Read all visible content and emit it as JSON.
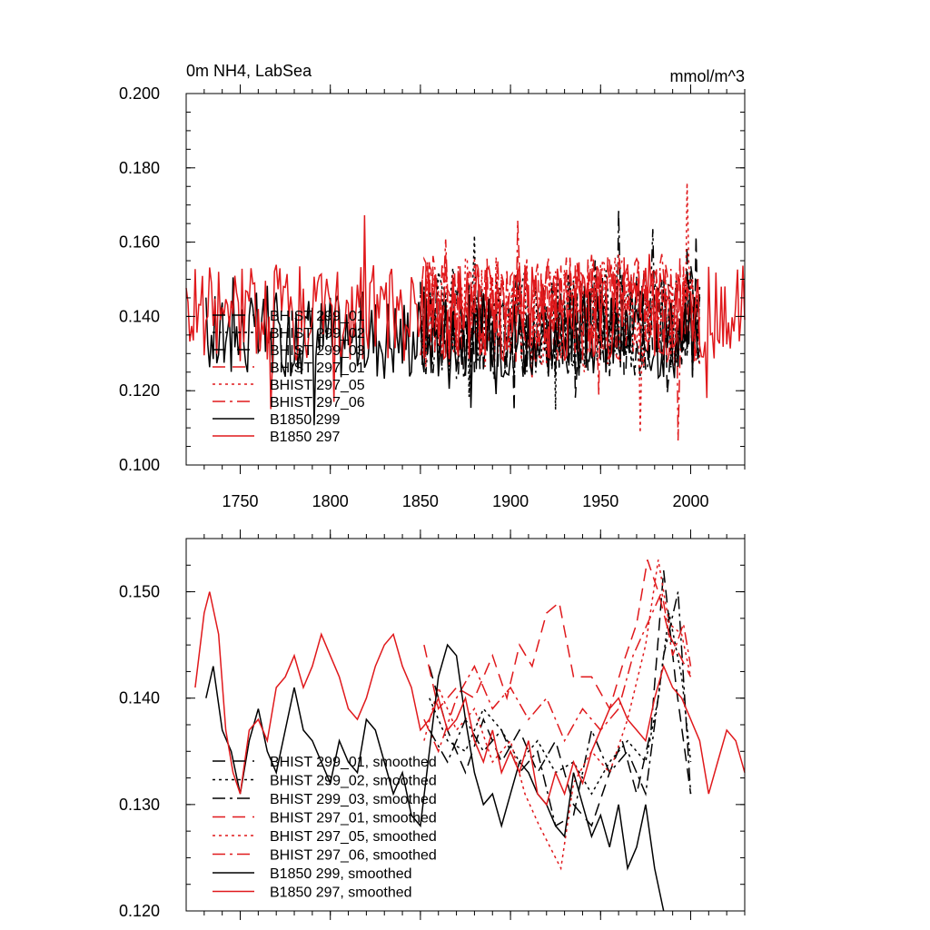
{
  "chart_data": [
    {
      "type": "line",
      "title": "0m NH4, LabSea",
      "units": "mmol/m^3",
      "xlim": [
        1720,
        2030
      ],
      "ylim": [
        0.1,
        0.2
      ],
      "xticks": [
        1750,
        1800,
        1850,
        1900,
        1950,
        2000
      ],
      "xtick_labels": [
        "1750",
        "1800",
        "1850",
        "1900",
        "1950",
        "2000"
      ],
      "yticks": [
        0.1,
        0.12,
        0.14,
        0.16,
        0.18,
        0.2
      ],
      "ytick_labels": [
        "0.100",
        "0.120",
        "0.140",
        "0.160",
        "0.180",
        "0.200"
      ],
      "series": [
        {
          "name": "BHIST 299_01",
          "color": "#000000",
          "dash": "14,8",
          "x_start": 1850,
          "x_end": 2005,
          "mean": 0.138,
          "amp": 0.014,
          "seed": 11
        },
        {
          "name": "BHIST 299_02",
          "color": "#000000",
          "dash": "3,4",
          "x_start": 1850,
          "x_end": 2005,
          "mean": 0.139,
          "amp": 0.014,
          "seed": 12
        },
        {
          "name": "BHIST 299_03",
          "color": "#000000",
          "dash": "14,5,3,5",
          "x_start": 1850,
          "x_end": 2005,
          "mean": 0.137,
          "amp": 0.014,
          "seed": 13
        },
        {
          "name": "BHIST 297_01",
          "color": "#e0191c",
          "dash": "14,8",
          "x_start": 1850,
          "x_end": 2005,
          "mean": 0.142,
          "amp": 0.015,
          "seed": 14
        },
        {
          "name": "BHIST 297_05",
          "color": "#e0191c",
          "dash": "3,4",
          "x_start": 1850,
          "x_end": 2005,
          "mean": 0.141,
          "amp": 0.015,
          "seed": 15
        },
        {
          "name": "BHIST 297_06",
          "color": "#e0191c",
          "dash": "14,5,3,5",
          "x_start": 1850,
          "x_end": 2005,
          "mean": 0.142,
          "amp": 0.015,
          "seed": 16
        },
        {
          "name": "B1850 299",
          "color": "#000000",
          "dash": "",
          "x_start": 1731,
          "x_end": 2005,
          "mean": 0.135,
          "amp": 0.012,
          "seed": 17
        },
        {
          "name": "B1850 297",
          "color": "#e0191c",
          "dash": "",
          "x_start": 1720,
          "x_end": 2030,
          "mean": 0.141,
          "amp": 0.013,
          "seed": 18
        }
      ]
    },
    {
      "type": "line",
      "xlim": [
        1720,
        2030
      ],
      "ylim": [
        0.12,
        0.155
      ],
      "yticks": [
        0.12,
        0.13,
        0.14,
        0.15
      ],
      "ytick_labels": [
        "0.120",
        "0.130",
        "0.140",
        "0.150"
      ],
      "series": [
        {
          "name": "BHIST 299_01, smoothed",
          "color": "#000000",
          "dash": "14,8",
          "points": [
            [
              1855,
              0.143
            ],
            [
              1865,
              0.137
            ],
            [
              1875,
              0.133
            ],
            [
              1885,
              0.138
            ],
            [
              1895,
              0.134
            ],
            [
              1905,
              0.137
            ],
            [
              1915,
              0.133
            ],
            [
              1925,
              0.136
            ],
            [
              1935,
              0.13
            ],
            [
              1945,
              0.128
            ],
            [
              1955,
              0.133
            ],
            [
              1962,
              0.136
            ],
            [
              1970,
              0.131
            ],
            [
              1978,
              0.137
            ],
            [
              1985,
              0.152
            ],
            [
              1992,
              0.141
            ],
            [
              2000,
              0.131
            ]
          ]
        },
        {
          "name": "BHIST 299_02, smoothed",
          "color": "#000000",
          "dash": "3,4",
          "points": [
            [
              1855,
              0.14
            ],
            [
              1865,
              0.136
            ],
            [
              1875,
              0.135
            ],
            [
              1885,
              0.139
            ],
            [
              1895,
              0.137
            ],
            [
              1905,
              0.134
            ],
            [
              1915,
              0.136
            ],
            [
              1925,
              0.133
            ],
            [
              1935,
              0.134
            ],
            [
              1945,
              0.131
            ],
            [
              1955,
              0.134
            ],
            [
              1965,
              0.136
            ],
            [
              1975,
              0.134
            ],
            [
              1982,
              0.14
            ],
            [
              1988,
              0.148
            ],
            [
              1995,
              0.142
            ],
            [
              2000,
              0.134
            ]
          ]
        },
        {
          "name": "BHIST 299_03, smoothed",
          "color": "#000000",
          "dash": "14,5,3,5",
          "points": [
            [
              1855,
              0.137
            ],
            [
              1865,
              0.134
            ],
            [
              1875,
              0.138
            ],
            [
              1885,
              0.135
            ],
            [
              1895,
              0.137
            ],
            [
              1905,
              0.133
            ],
            [
              1915,
              0.135
            ],
            [
              1925,
              0.128
            ],
            [
              1935,
              0.129
            ],
            [
              1945,
              0.137
            ],
            [
              1955,
              0.133
            ],
            [
              1965,
              0.135
            ],
            [
              1975,
              0.131
            ],
            [
              1985,
              0.144
            ],
            [
              1993,
              0.15
            ],
            [
              2000,
              0.131
            ]
          ]
        },
        {
          "name": "BHIST 297_01, smoothed",
          "color": "#e0191c",
          "dash": "14,8",
          "points": [
            [
              1852,
              0.145
            ],
            [
              1860,
              0.139
            ],
            [
              1870,
              0.141
            ],
            [
              1880,
              0.14
            ],
            [
              1890,
              0.144
            ],
            [
              1898,
              0.14
            ],
            [
              1905,
              0.145
            ],
            [
              1912,
              0.143
            ],
            [
              1920,
              0.148
            ],
            [
              1927,
              0.149
            ],
            [
              1935,
              0.142
            ],
            [
              1945,
              0.142
            ],
            [
              1955,
              0.139
            ],
            [
              1962,
              0.143
            ],
            [
              1970,
              0.147
            ],
            [
              1976,
              0.153
            ],
            [
              1982,
              0.15
            ],
            [
              1988,
              0.146
            ],
            [
              1994,
              0.144
            ],
            [
              2000,
              0.142
            ]
          ]
        },
        {
          "name": "BHIST 297_05, smoothed",
          "color": "#e0191c",
          "dash": "3,4",
          "points": [
            [
              1852,
              0.136
            ],
            [
              1860,
              0.141
            ],
            [
              1870,
              0.137
            ],
            [
              1880,
              0.139
            ],
            [
              1890,
              0.134
            ],
            [
              1900,
              0.136
            ],
            [
              1908,
              0.131
            ],
            [
              1916,
              0.128
            ],
            [
              1922,
              0.126
            ],
            [
              1928,
              0.124
            ],
            [
              1935,
              0.132
            ],
            [
              1945,
              0.135
            ],
            [
              1955,
              0.133
            ],
            [
              1965,
              0.138
            ],
            [
              1975,
              0.145
            ],
            [
              1982,
              0.153
            ],
            [
              1988,
              0.147
            ],
            [
              1995,
              0.146
            ],
            [
              2000,
              0.142
            ]
          ]
        },
        {
          "name": "BHIST 297_06, smoothed",
          "color": "#e0191c",
          "dash": "14,5,3,5",
          "points": [
            [
              1852,
              0.138
            ],
            [
              1860,
              0.135
            ],
            [
              1870,
              0.14
            ],
            [
              1880,
              0.143
            ],
            [
              1890,
              0.139
            ],
            [
              1900,
              0.141
            ],
            [
              1910,
              0.138
            ],
            [
              1920,
              0.14
            ],
            [
              1930,
              0.136
            ],
            [
              1940,
              0.139
            ],
            [
              1950,
              0.137
            ],
            [
              1960,
              0.139
            ],
            [
              1968,
              0.144
            ],
            [
              1976,
              0.147
            ],
            [
              1984,
              0.15
            ],
            [
              1990,
              0.144
            ],
            [
              1996,
              0.147
            ],
            [
              2000,
              0.143
            ]
          ]
        },
        {
          "name": "B1850 299, smoothed",
          "color": "#000000",
          "dash": "",
          "points": [
            [
              1731,
              0.14
            ],
            [
              1735,
              0.143
            ],
            [
              1740,
              0.137
            ],
            [
              1745,
              0.135
            ],
            [
              1750,
              0.131
            ],
            [
              1755,
              0.136
            ],
            [
              1760,
              0.139
            ],
            [
              1765,
              0.135
            ],
            [
              1770,
              0.133
            ],
            [
              1775,
              0.137
            ],
            [
              1780,
              0.141
            ],
            [
              1785,
              0.137
            ],
            [
              1790,
              0.136
            ],
            [
              1795,
              0.134
            ],
            [
              1800,
              0.132
            ],
            [
              1805,
              0.136
            ],
            [
              1810,
              0.134
            ],
            [
              1815,
              0.133
            ],
            [
              1820,
              0.138
            ],
            [
              1825,
              0.137
            ],
            [
              1830,
              0.134
            ],
            [
              1835,
              0.131
            ],
            [
              1840,
              0.133
            ],
            [
              1845,
              0.129
            ],
            [
              1850,
              0.128
            ],
            [
              1855,
              0.135
            ],
            [
              1860,
              0.142
            ],
            [
              1865,
              0.145
            ],
            [
              1870,
              0.144
            ],
            [
              1875,
              0.138
            ],
            [
              1880,
              0.133
            ],
            [
              1885,
              0.13
            ],
            [
              1890,
              0.131
            ],
            [
              1895,
              0.128
            ],
            [
              1900,
              0.131
            ],
            [
              1905,
              0.134
            ],
            [
              1910,
              0.133
            ],
            [
              1915,
              0.131
            ],
            [
              1920,
              0.13
            ],
            [
              1925,
              0.128
            ],
            [
              1930,
              0.127
            ],
            [
              1935,
              0.133
            ],
            [
              1940,
              0.13
            ],
            [
              1945,
              0.127
            ],
            [
              1950,
              0.129
            ],
            [
              1955,
              0.126
            ],
            [
              1960,
              0.13
            ],
            [
              1965,
              0.124
            ],
            [
              1970,
              0.126
            ],
            [
              1975,
              0.13
            ],
            [
              1980,
              0.124
            ],
            [
              1985,
              0.12
            ]
          ]
        },
        {
          "name": "B1850 297, smoothed",
          "color": "#e0191c",
          "dash": "",
          "points": [
            [
              1725,
              0.141
            ],
            [
              1730,
              0.148
            ],
            [
              1733,
              0.15
            ],
            [
              1738,
              0.146
            ],
            [
              1742,
              0.137
            ],
            [
              1746,
              0.133
            ],
            [
              1750,
              0.131
            ],
            [
              1755,
              0.137
            ],
            [
              1760,
              0.138
            ],
            [
              1765,
              0.136
            ],
            [
              1770,
              0.141
            ],
            [
              1775,
              0.142
            ],
            [
              1780,
              0.144
            ],
            [
              1785,
              0.141
            ],
            [
              1790,
              0.143
            ],
            [
              1795,
              0.146
            ],
            [
              1800,
              0.144
            ],
            [
              1805,
              0.142
            ],
            [
              1810,
              0.139
            ],
            [
              1815,
              0.138
            ],
            [
              1820,
              0.14
            ],
            [
              1825,
              0.143
            ],
            [
              1830,
              0.145
            ],
            [
              1835,
              0.146
            ],
            [
              1840,
              0.143
            ],
            [
              1845,
              0.141
            ],
            [
              1850,
              0.137
            ],
            [
              1855,
              0.138
            ],
            [
              1860,
              0.14
            ],
            [
              1865,
              0.137
            ],
            [
              1870,
              0.138
            ],
            [
              1875,
              0.14
            ],
            [
              1880,
              0.136
            ],
            [
              1885,
              0.134
            ],
            [
              1890,
              0.137
            ],
            [
              1895,
              0.133
            ],
            [
              1900,
              0.135
            ],
            [
              1905,
              0.133
            ],
            [
              1910,
              0.136
            ],
            [
              1915,
              0.131
            ],
            [
              1920,
              0.13
            ],
            [
              1925,
              0.133
            ],
            [
              1930,
              0.131
            ],
            [
              1935,
              0.134
            ],
            [
              1940,
              0.132
            ],
            [
              1945,
              0.135
            ],
            [
              1950,
              0.137
            ],
            [
              1955,
              0.139
            ],
            [
              1960,
              0.14
            ],
            [
              1965,
              0.138
            ],
            [
              1970,
              0.137
            ],
            [
              1975,
              0.136
            ],
            [
              1980,
              0.14
            ],
            [
              1985,
              0.143
            ],
            [
              1990,
              0.141
            ],
            [
              1995,
              0.14
            ],
            [
              2000,
              0.138
            ],
            [
              2005,
              0.136
            ],
            [
              2010,
              0.131
            ],
            [
              2015,
              0.134
            ],
            [
              2020,
              0.137
            ],
            [
              2025,
              0.136
            ],
            [
              2030,
              0.133
            ]
          ]
        }
      ]
    }
  ]
}
